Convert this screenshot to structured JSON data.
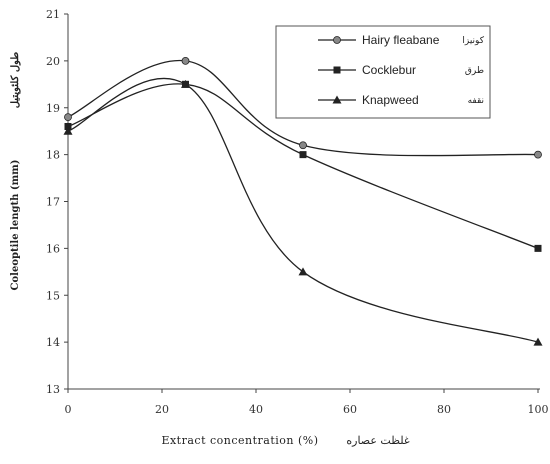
{
  "chart_data": {
    "type": "line",
    "x": [
      0,
      25,
      50,
      100
    ],
    "x_ticks": [
      "0",
      "20",
      "40",
      "60",
      "80",
      "100"
    ],
    "y_ticks": [
      "13",
      "14",
      "15",
      "16",
      "17",
      "18",
      "19",
      "20",
      "21"
    ],
    "xlim": [
      0,
      100
    ],
    "ylim": [
      13,
      21
    ],
    "xlabel": "Extract concentration (%)",
    "xlabel_fa": "غلظت عصاره",
    "ylabel": "Coleoptile length (mm)",
    "ylabel_fa": "طول کلئوپتیل",
    "grid": false,
    "legend_position": "top-right",
    "series": [
      {
        "name": "Hairy fleabane",
        "name_fa": "کونیزا",
        "marker": "circle",
        "values": [
          18.8,
          20.0,
          18.2,
          18.0
        ]
      },
      {
        "name": "Cocklebur",
        "name_fa": "طرق",
        "marker": "square",
        "values": [
          18.6,
          19.5,
          18.0,
          16.0
        ]
      },
      {
        "name": "Knapweed",
        "name_fa": "نقفه",
        "marker": "triangle",
        "values": [
          18.5,
          19.5,
          15.5,
          14.0
        ]
      }
    ],
    "colors": {
      "line": "#222222",
      "axis": "#444444"
    }
  }
}
